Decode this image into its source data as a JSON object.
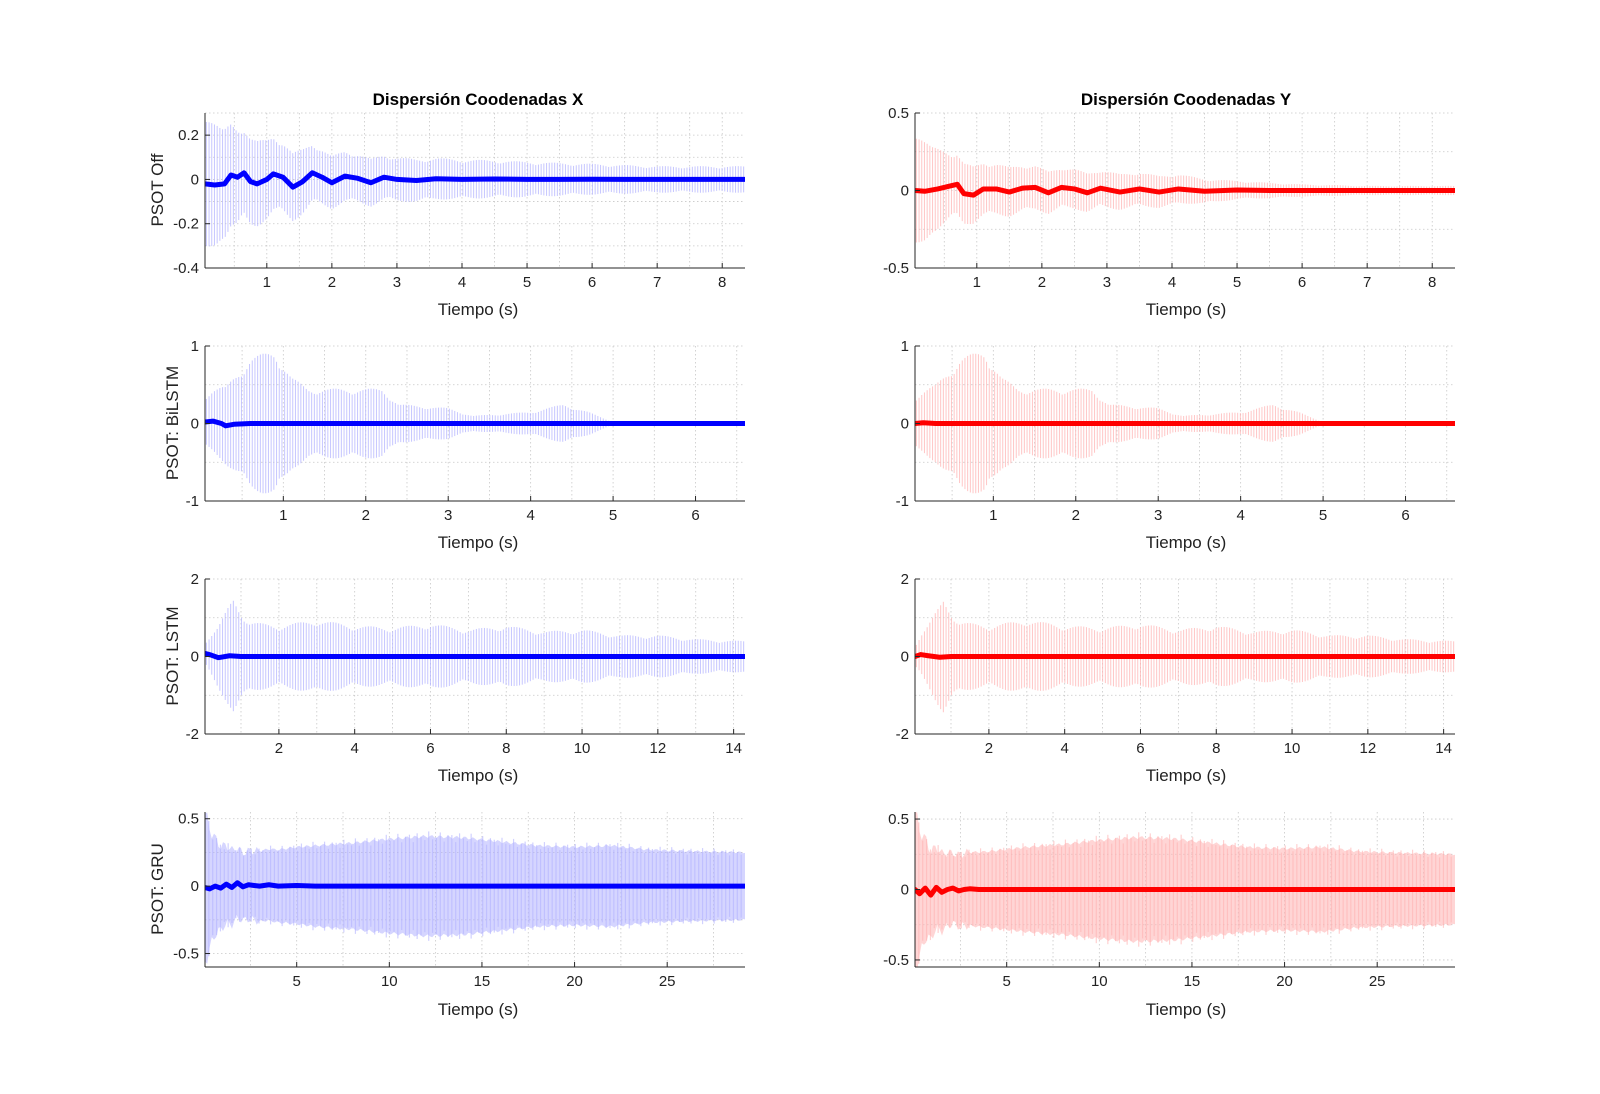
{
  "figure": {
    "background": "#ffffff",
    "col_colors": [
      "#0000ff",
      "#ff0000"
    ],
    "band_colors": [
      "#b3b3ff",
      "#ffb3b3"
    ]
  },
  "chart_data": [
    {
      "id": "ax1",
      "type": "line",
      "title": "Dispersión Coodenadas X",
      "xlabel": "Tiempo (s)",
      "ylabel": "PSOT Off",
      "xlim": [
        0.05,
        8.35
      ],
      "ylim": [
        -0.4,
        0.3
      ],
      "xticks": [
        1,
        2,
        3,
        4,
        5,
        6,
        7,
        8
      ],
      "yticks": [
        -0.4,
        -0.2,
        0,
        0.2
      ],
      "grid": "on",
      "minor_grid": "on",
      "band_style": "thin-bars",
      "mean_line": {
        "x": [
          0.05,
          0.2,
          0.35,
          0.45,
          0.55,
          0.65,
          0.75,
          0.85,
          1.0,
          1.1,
          1.25,
          1.4,
          1.55,
          1.7,
          1.85,
          2.0,
          2.2,
          2.4,
          2.6,
          2.8,
          3.0,
          3.3,
          3.6,
          4.0,
          4.5,
          5.0,
          5.5,
          6.0,
          6.5,
          7.0,
          7.5,
          8.35
        ],
        "y": [
          -0.02,
          -0.025,
          -0.02,
          0.02,
          0.01,
          0.03,
          -0.01,
          -0.02,
          0.0,
          0.025,
          0.01,
          -0.035,
          -0.01,
          0.03,
          0.01,
          -0.015,
          0.015,
          0.005,
          -0.015,
          0.01,
          0.0,
          -0.005,
          0.003,
          0.0,
          0.002,
          0.0,
          0.0,
          0.001,
          0.0,
          0.0,
          0.0,
          0.0
        ]
      },
      "band_envelope": {
        "x": [
          0.05,
          0.3,
          0.6,
          1.0,
          1.5,
          2.0,
          3.0,
          4.0,
          5.0,
          6.0,
          7.0,
          8.35
        ],
        "halfwidth": [
          0.35,
          0.25,
          0.22,
          0.18,
          0.15,
          0.12,
          0.1,
          0.09,
          0.08,
          0.07,
          0.06,
          0.06
        ]
      }
    },
    {
      "id": "ax2",
      "type": "line",
      "title": "Dispersión Coodenadas Y",
      "xlabel": "Tiempo (s)",
      "ylabel": "",
      "xlim": [
        0.05,
        8.35
      ],
      "ylim": [
        -0.5,
        0.5
      ],
      "xticks": [
        1,
        2,
        3,
        4,
        5,
        6,
        7,
        8
      ],
      "yticks": [
        -0.5,
        0,
        0.5
      ],
      "grid": "on",
      "minor_grid": "on",
      "band_style": "thin-bars",
      "mean_line": {
        "x": [
          0.05,
          0.2,
          0.4,
          0.6,
          0.7,
          0.8,
          0.95,
          1.1,
          1.3,
          1.5,
          1.7,
          1.9,
          2.1,
          2.3,
          2.5,
          2.7,
          2.9,
          3.2,
          3.5,
          3.8,
          4.1,
          4.5,
          5.0,
          5.5,
          6.0,
          7.0,
          8.35
        ],
        "y": [
          0.0,
          -0.005,
          0.01,
          0.03,
          0.04,
          -0.02,
          -0.03,
          0.01,
          0.01,
          -0.01,
          0.015,
          0.02,
          -0.015,
          0.02,
          0.01,
          -0.015,
          0.015,
          -0.01,
          0.01,
          -0.01,
          0.01,
          -0.005,
          0.003,
          0.0,
          0.0,
          0.0,
          0.0
        ]
      },
      "band_envelope": {
        "x": [
          0.05,
          0.3,
          0.6,
          1.0,
          1.5,
          2.0,
          3.0,
          4.0,
          5.0,
          6.0,
          7.0,
          8.35
        ],
        "halfwidth": [
          0.42,
          0.28,
          0.22,
          0.18,
          0.16,
          0.14,
          0.12,
          0.1,
          0.06,
          0.04,
          0.03,
          0.03
        ]
      }
    },
    {
      "id": "ax3",
      "type": "line",
      "title": "",
      "xlabel": "Tiempo (s)",
      "ylabel": "PSOT: BiLSTM",
      "xlim": [
        0.05,
        6.6
      ],
      "ylim": [
        -1,
        1
      ],
      "xticks": [
        1,
        2,
        3,
        4,
        5,
        6
      ],
      "yticks": [
        -1,
        0,
        1
      ],
      "grid": "on",
      "minor_grid": "on",
      "band_style": "thin-bars",
      "mean_line": {
        "x": [
          0.05,
          0.15,
          0.25,
          0.3,
          0.4,
          0.6,
          1.0,
          2.0,
          3.0,
          4.0,
          5.0,
          6.0,
          6.6
        ],
        "y": [
          0.02,
          0.03,
          0.0,
          -0.03,
          -0.01,
          0.0,
          0.0,
          0.0,
          0.0,
          0.0,
          0.0,
          0.0,
          0.0
        ]
      },
      "band_envelope": {
        "x": [
          0.05,
          0.3,
          0.6,
          0.9,
          1.1,
          1.3,
          1.8,
          2.2,
          2.4,
          3.0,
          3.3,
          4.0,
          4.4,
          4.7,
          5.0,
          6.6
        ],
        "halfwidth": [
          0.35,
          0.5,
          0.85,
          0.95,
          0.6,
          0.45,
          0.45,
          0.45,
          0.25,
          0.2,
          0.1,
          0.15,
          0.25,
          0.15,
          0.02,
          0.01
        ]
      }
    },
    {
      "id": "ax4",
      "type": "line",
      "title": "",
      "xlabel": "Tiempo (s)",
      "ylabel": "",
      "xlim": [
        0.05,
        6.6
      ],
      "ylim": [
        -1,
        1
      ],
      "xticks": [
        1,
        2,
        3,
        4,
        5,
        6
      ],
      "yticks": [
        -1,
        0,
        1
      ],
      "grid": "on",
      "minor_grid": "on",
      "band_style": "thin-bars",
      "mean_line": {
        "x": [
          0.05,
          0.15,
          0.3,
          0.6,
          1.0,
          2.0,
          3.0,
          4.0,
          5.0,
          6.0,
          6.6
        ],
        "y": [
          0.0,
          0.01,
          0.0,
          0.0,
          0.0,
          0.0,
          0.0,
          0.0,
          0.0,
          0.0,
          0.0
        ]
      },
      "band_envelope": {
        "x": [
          0.05,
          0.3,
          0.6,
          0.9,
          1.1,
          1.3,
          1.8,
          2.2,
          2.4,
          3.0,
          3.3,
          4.0,
          4.4,
          4.7,
          5.0,
          6.6
        ],
        "halfwidth": [
          0.35,
          0.5,
          0.85,
          0.95,
          0.6,
          0.45,
          0.45,
          0.45,
          0.25,
          0.2,
          0.1,
          0.15,
          0.25,
          0.15,
          0.02,
          0.01
        ]
      }
    },
    {
      "id": "ax5",
      "type": "line",
      "title": "",
      "xlabel": "Tiempo (s)",
      "ylabel": "PSOT: LSTM",
      "xlim": [
        0.05,
        14.3
      ],
      "ylim": [
        -2,
        2
      ],
      "xticks": [
        2,
        4,
        6,
        8,
        10,
        12,
        14
      ],
      "yticks": [
        -2,
        0,
        2
      ],
      "grid": "on",
      "minor_grid": "on",
      "band_style": "thin-bars",
      "mean_line": {
        "x": [
          0.05,
          0.2,
          0.4,
          0.7,
          1.0,
          2.0,
          4.0,
          6.0,
          8.0,
          10.0,
          12.0,
          14.3
        ],
        "y": [
          0.08,
          0.04,
          -0.03,
          0.02,
          0.0,
          0.0,
          0.0,
          0.0,
          0.0,
          0.0,
          0.0,
          0.0
        ]
      },
      "band_envelope": {
        "x": [
          0.05,
          0.4,
          0.8,
          1.2,
          2.0,
          3.0,
          4.0,
          5.0,
          6.0,
          7.0,
          8.0,
          9.0,
          10.0,
          11.0,
          12.0,
          13.0,
          14.3
        ],
        "halfwidth": [
          0.3,
          0.8,
          1.5,
          0.9,
          0.8,
          0.95,
          0.8,
          0.75,
          0.85,
          0.7,
          0.8,
          0.65,
          0.7,
          0.55,
          0.55,
          0.45,
          0.4
        ]
      }
    },
    {
      "id": "ax6",
      "type": "line",
      "title": "",
      "xlabel": "Tiempo (s)",
      "ylabel": "",
      "xlim": [
        0.05,
        14.3
      ],
      "ylim": [
        -2,
        2
      ],
      "xticks": [
        2,
        4,
        6,
        8,
        10,
        12,
        14
      ],
      "yticks": [
        -2,
        0,
        2
      ],
      "grid": "on",
      "minor_grid": "on",
      "band_style": "thin-bars",
      "mean_line": {
        "x": [
          0.05,
          0.2,
          0.4,
          0.7,
          1.0,
          2.0,
          4.0,
          6.0,
          8.0,
          10.0,
          12.0,
          14.3
        ],
        "y": [
          0.0,
          0.05,
          0.02,
          -0.02,
          0.0,
          0.0,
          0.0,
          0.0,
          0.0,
          0.0,
          0.0,
          0.0
        ]
      },
      "band_envelope": {
        "x": [
          0.05,
          0.4,
          0.8,
          1.2,
          2.0,
          3.0,
          4.0,
          5.0,
          6.0,
          7.0,
          8.0,
          9.0,
          10.0,
          11.0,
          12.0,
          13.0,
          14.3
        ],
        "halfwidth": [
          0.3,
          0.8,
          1.5,
          0.9,
          0.8,
          0.95,
          0.8,
          0.75,
          0.85,
          0.7,
          0.8,
          0.65,
          0.7,
          0.55,
          0.55,
          0.45,
          0.4
        ]
      }
    },
    {
      "id": "ax7",
      "type": "line",
      "title": "",
      "xlabel": "Tiempo (s)",
      "ylabel": "PSOT: GRU",
      "xlim": [
        0.05,
        29.2
      ],
      "ylim": [
        -0.6,
        0.55
      ],
      "xticks": [
        5,
        10,
        15,
        20,
        25
      ],
      "yticks": [
        -0.5,
        0,
        0.5
      ],
      "grid": "on",
      "minor_grid": "on",
      "band_style": "filled",
      "mean_line": {
        "x": [
          0.05,
          0.3,
          0.6,
          0.9,
          1.2,
          1.5,
          1.8,
          2.1,
          2.4,
          2.7,
          3.0,
          3.5,
          4.0,
          5.0,
          6.0,
          8.0,
          10.0,
          15.0,
          20.0,
          25.0,
          29.2
        ],
        "y": [
          -0.01,
          -0.02,
          0.0,
          -0.015,
          0.015,
          -0.01,
          0.025,
          -0.005,
          0.01,
          0.005,
          0.0,
          0.01,
          0.0,
          0.005,
          0.0,
          0.0,
          0.0,
          0.0,
          0.0,
          0.0,
          0.0
        ]
      },
      "band_envelope": {
        "x": [
          0.05,
          0.3,
          0.6,
          1.0,
          2.0,
          4.0,
          6.0,
          8.0,
          10.0,
          12.0,
          14.0,
          16.0,
          18.0,
          20.0,
          22.0,
          24.0,
          26.0,
          29.2
        ],
        "halfwidth": [
          0.55,
          0.45,
          0.35,
          0.3,
          0.25,
          0.27,
          0.3,
          0.32,
          0.35,
          0.37,
          0.36,
          0.33,
          0.3,
          0.29,
          0.3,
          0.27,
          0.26,
          0.25
        ]
      }
    },
    {
      "id": "ax8",
      "type": "line",
      "title": "",
      "xlabel": "Tiempo (s)",
      "ylabel": "",
      "xlim": [
        0.05,
        29.2
      ],
      "ylim": [
        -0.55,
        0.55
      ],
      "xticks": [
        5,
        10,
        15,
        20,
        25
      ],
      "yticks": [
        -0.5,
        0,
        0.5
      ],
      "grid": "on",
      "minor_grid": "on",
      "band_style": "filled",
      "mean_line": {
        "x": [
          0.05,
          0.3,
          0.6,
          0.9,
          1.2,
          1.5,
          1.8,
          2.1,
          2.4,
          2.7,
          3.0,
          3.5,
          4.0,
          5.0,
          6.0,
          8.0,
          10.0,
          15.0,
          20.0,
          25.0,
          29.2
        ],
        "y": [
          0.0,
          -0.03,
          0.01,
          -0.04,
          0.015,
          -0.02,
          0.0,
          0.01,
          -0.01,
          0.0,
          0.005,
          0.0,
          0.0,
          0.0,
          0.0,
          0.0,
          0.0,
          0.0,
          0.0,
          0.0,
          0.0
        ]
      },
      "band_envelope": {
        "x": [
          0.05,
          0.3,
          0.6,
          1.0,
          2.0,
          4.0,
          6.0,
          8.0,
          10.0,
          12.0,
          14.0,
          16.0,
          18.0,
          20.0,
          22.0,
          24.0,
          26.0,
          29.2
        ],
        "halfwidth": [
          0.55,
          0.45,
          0.35,
          0.3,
          0.25,
          0.27,
          0.3,
          0.32,
          0.35,
          0.37,
          0.36,
          0.33,
          0.3,
          0.29,
          0.3,
          0.27,
          0.26,
          0.25
        ]
      }
    }
  ]
}
